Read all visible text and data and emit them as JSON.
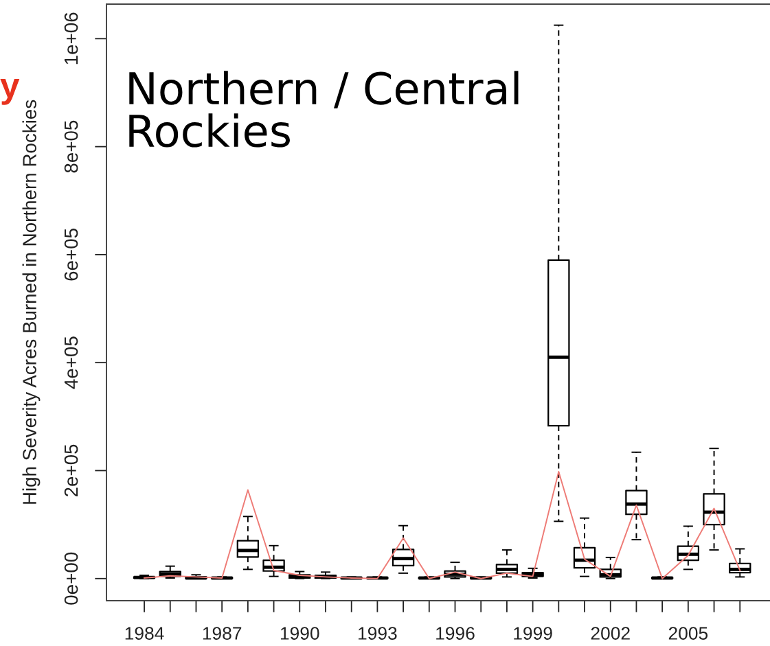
{
  "chart_data": {
    "type": "box",
    "categories": [
      "1984",
      null,
      null,
      "1987",
      null,
      null,
      "1990",
      null,
      null,
      "1993",
      null,
      null,
      "1996",
      null,
      null,
      "1999",
      null,
      null,
      "2002",
      null,
      null,
      "2005",
      null,
      null
    ],
    "boxes": [
      {
        "low": 0,
        "q1": 1000,
        "median": 2000,
        "q3": 3000,
        "high": 6000
      },
      {
        "low": 1000,
        "q1": 4000,
        "median": 8000,
        "q3": 13000,
        "high": 23000
      },
      {
        "low": 0,
        "q1": 0,
        "median": 1000,
        "q3": 3000,
        "high": 7000
      },
      {
        "low": 0,
        "q1": 0,
        "median": 1000,
        "q3": 2000,
        "high": 3000
      },
      {
        "low": 17000,
        "q1": 40000,
        "median": 52000,
        "q3": 70000,
        "high": 115000
      },
      {
        "low": 4000,
        "q1": 14000,
        "median": 21000,
        "q3": 34000,
        "high": 61000
      },
      {
        "low": 0,
        "q1": 1000,
        "median": 3000,
        "q3": 7000,
        "high": 13000
      },
      {
        "low": 0,
        "q1": 1000,
        "median": 3000,
        "q3": 6000,
        "high": 12000
      },
      {
        "low": 0,
        "q1": 0,
        "median": 1000,
        "q3": 2000,
        "high": 3000
      },
      {
        "low": 0,
        "q1": 0,
        "median": 1000,
        "q3": 2000,
        "high": 3000
      },
      {
        "low": 10000,
        "q1": 24000,
        "median": 37000,
        "q3": 54000,
        "high": 98000
      },
      {
        "low": 0,
        "q1": 0,
        "median": 1000,
        "q3": 2000,
        "high": 3000
      },
      {
        "low": 0,
        "q1": 3000,
        "median": 8000,
        "q3": 14000,
        "high": 30000
      },
      {
        "low": 0,
        "q1": 0,
        "median": 1000,
        "q3": 2000,
        "high": 3000
      },
      {
        "low": 3000,
        "q1": 10000,
        "median": 17000,
        "q3": 26000,
        "high": 53000
      },
      {
        "low": 1000,
        "q1": 4000,
        "median": 7000,
        "q3": 11000,
        "high": 19000
      },
      {
        "low": 106000,
        "q1": 283000,
        "median": 410000,
        "q3": 590000,
        "high": 1025000
      },
      {
        "low": 4000,
        "q1": 20000,
        "median": 34000,
        "q3": 57000,
        "high": 112000
      },
      {
        "low": 0,
        "q1": 3000,
        "median": 7000,
        "q3": 17000,
        "high": 39000
      },
      {
        "low": 72000,
        "q1": 119000,
        "median": 138000,
        "q3": 163000,
        "high": 234000
      },
      {
        "low": 0,
        "q1": 0,
        "median": 1000,
        "q3": 2000,
        "high": 3000
      },
      {
        "low": 17000,
        "q1": 34000,
        "median": 45000,
        "q3": 60000,
        "high": 97000
      },
      {
        "low": 53000,
        "q1": 100000,
        "median": 123000,
        "q3": 157000,
        "high": 241000
      },
      {
        "low": 3000,
        "q1": 11000,
        "median": 17000,
        "q3": 28000,
        "high": 55000
      }
    ],
    "series": [
      {
        "type": "line",
        "color": "#ee7b76",
        "values": [
          1000,
          5000,
          3000,
          1000,
          164000,
          15000,
          6000,
          3000,
          1000,
          0,
          75000,
          0,
          12000,
          0,
          10000,
          4000,
          198000,
          36000,
          4000,
          136000,
          0,
          43000,
          130000,
          15000
        ]
      }
    ],
    "ylabel": "High Severity Acres Burned in Northern Rockies",
    "ylim": [
      -41000,
      1064000
    ],
    "yticks": [
      {
        "value": 0,
        "label": "0e+00"
      },
      {
        "value": 200000,
        "label": "2e+05"
      },
      {
        "value": 400000,
        "label": "4e+05"
      },
      {
        "value": 600000,
        "label": "6e+05"
      },
      {
        "value": 800000,
        "label": "8e+05"
      },
      {
        "value": 1000000,
        "label": "1e+06"
      }
    ],
    "annotations": [
      "Northern / Central\nRockies",
      "y"
    ]
  }
}
